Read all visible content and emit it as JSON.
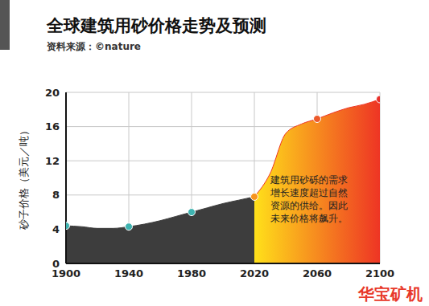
{
  "chart_data": {
    "type": "area",
    "title": "全球建筑用砂价格走势及预测",
    "subtitle": "资料来源：©nature",
    "y_label": "砂子价格（美元／吨）",
    "annotation": [
      "建筑用砂砾的需求",
      "增长速度超过自然",
      "资源的供给。因此",
      "未来价格将飙升。"
    ],
    "watermark": "华宝矿机",
    "x": [
      1900,
      1910,
      1920,
      1930,
      1940,
      1950,
      1960,
      1970,
      1980,
      1990,
      2000,
      2010,
      2020,
      2030,
      2040,
      2050,
      2060,
      2070,
      2080,
      2090,
      2100
    ],
    "series": [
      {
        "type": "area",
        "color": "#3d3d3d",
        "values": [
          4.4,
          4.3,
          4.1,
          4.1,
          4.3,
          4.6,
          5.0,
          5.5,
          6.0,
          6.5,
          7.0,
          7.4,
          7.8,
          null,
          null,
          null,
          null,
          null,
          null,
          null,
          null
        ]
      },
      {
        "type": "area",
        "color": "#ee3524",
        "values": [
          null,
          null,
          null,
          null,
          null,
          null,
          null,
          null,
          null,
          null,
          null,
          null,
          7.8,
          10.5,
          15.2,
          16.3,
          16.9,
          17.6,
          18.2,
          18.6,
          19.2
        ]
      },
      {
        "type": "scatter",
        "marker": "circle",
        "x": [
          1900,
          1940,
          1980,
          2020,
          2060,
          2100
        ],
        "values": [
          4.4,
          4.3,
          6.0,
          7.8,
          16.9,
          19.2
        ],
        "colors": [
          "#3fb3b0",
          "#3fb3b0",
          "#3fb3b0",
          "#f7941d",
          "#ec5a2b",
          "#e8302a"
        ]
      }
    ],
    "xlim": [
      1900,
      2100
    ],
    "xticks": [
      1900,
      1940,
      1980,
      2020,
      2060,
      2100
    ],
    "ylim": [
      0,
      20
    ],
    "yticks": [
      0,
      4,
      8,
      12,
      16,
      20
    ],
    "grid": true
  }
}
